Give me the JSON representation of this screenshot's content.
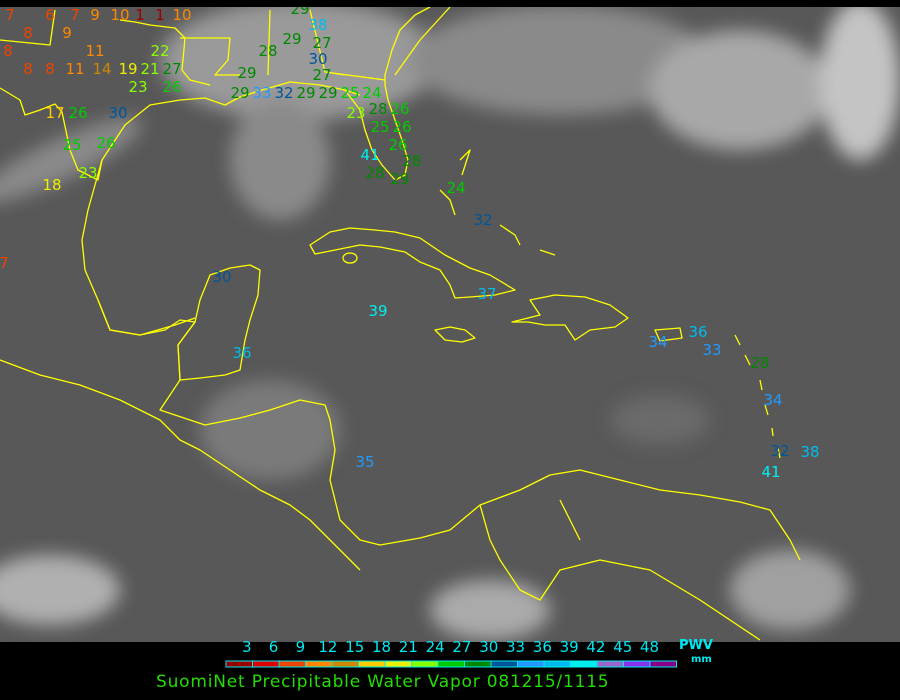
{
  "title": "SuomiNet Precipitable Water Vapor 081215/1115",
  "legend": {
    "unit_top": "PWV",
    "unit_bottom": "mm",
    "ticks": [
      "3",
      "6",
      "9",
      "12",
      "15",
      "18",
      "21",
      "24",
      "27",
      "30",
      "33",
      "36",
      "39",
      "42",
      "45",
      "48"
    ],
    "colors": [
      "#990000",
      "#dd0000",
      "#ee4400",
      "#ff8800",
      "#cc8800",
      "#ffcc00",
      "#eeee00",
      "#88ff00",
      "#00cc00",
      "#008800",
      "#005599",
      "#2299ff",
      "#00bbee",
      "#00eeee",
      "#9966cc",
      "#8833ee",
      "#880088"
    ]
  },
  "map": {
    "background": "#555555",
    "coastline_color": "#ffff00",
    "stations": [
      "7",
      "8",
      "6",
      "7",
      "9",
      "10",
      "1",
      "1",
      "10",
      "8",
      "8",
      "9",
      "11",
      "8",
      "11",
      "14",
      "19",
      "21",
      "22",
      "27",
      "23",
      "26",
      "17",
      "26",
      "30",
      "25",
      "23",
      "18",
      "26",
      "29",
      "28",
      "29",
      "38",
      "27",
      "30",
      "27",
      "29",
      "33",
      "32",
      "29",
      "29",
      "25",
      "24",
      "28",
      "23",
      "26",
      "25",
      "26",
      "26",
      "28",
      "41",
      "28",
      "29",
      "24",
      "32",
      "30",
      "39",
      "37",
      "36",
      "35",
      "34",
      "36",
      "33",
      "28",
      "34",
      "32",
      "38",
      "41",
      "7",
      "29"
    ]
  }
}
